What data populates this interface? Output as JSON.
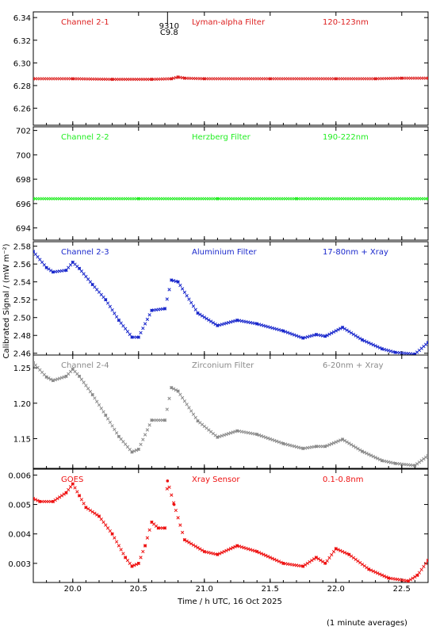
{
  "chart_data": {
    "type": "scatter",
    "ylabel": "Calibrated Signal / (mW m⁻²)",
    "xlabel": "Time / h UTC, 16 Oct 2025",
    "footnote": "(1 minute averages)",
    "x_range": [
      19.7,
      22.7
    ],
    "x_ticks": [
      20.0,
      20.5,
      21.0,
      21.5,
      22.0,
      22.5
    ],
    "x_tick_labels": [
      "20.0",
      "20.5",
      "21.0",
      "21.5",
      "22.0",
      "22.5"
    ],
    "annotation": {
      "lines": [
        "9310",
        "C9.8"
      ],
      "x": 20.72
    },
    "panels": [
      {
        "channel": "Channel 2-1",
        "filter": "Lyman-alpha Filter",
        "band": "120-123nm",
        "color": "#dd2020",
        "ylim": [
          6.245,
          6.345
        ],
        "yticks": [
          6.26,
          6.28,
          6.3,
          6.32,
          6.34
        ],
        "ytick_labels": [
          "6.26",
          "6.28",
          "6.30",
          "6.32",
          "6.34"
        ],
        "x": [
          19.7,
          20.0,
          20.3,
          20.6,
          20.75,
          20.8,
          20.85,
          21.0,
          21.5,
          22.0,
          22.3,
          22.5,
          22.7
        ],
        "values": [
          6.286,
          6.286,
          6.2855,
          6.2855,
          6.286,
          6.2875,
          6.2865,
          6.286,
          6.286,
          6.286,
          6.286,
          6.2865,
          6.2865
        ]
      },
      {
        "channel": "Channel 2-2",
        "filter": "Herzberg Filter",
        "band": "190-222nm",
        "color": "#22ee22",
        "ylim": [
          693.0,
          702.3
        ],
        "yticks": [
          694,
          696,
          698,
          700,
          702
        ],
        "ytick_labels": [
          "694",
          "696",
          "698",
          "700",
          "702"
        ],
        "x": [
          19.7,
          20.5,
          21.1,
          21.7,
          22.7
        ],
        "values": [
          696.4,
          696.4,
          696.4,
          696.4,
          696.4
        ]
      },
      {
        "channel": "Channel 2-3",
        "filter": "Aluminium Filter",
        "band": "17-80nm + Xray",
        "color": "#1a28cc",
        "ylim": [
          2.458,
          2.585
        ],
        "yticks": [
          2.46,
          2.48,
          2.5,
          2.52,
          2.54,
          2.56,
          2.58
        ],
        "ytick_labels": [
          "2.46",
          "2.48",
          "2.50",
          "2.52",
          "2.54",
          "2.56",
          "2.58"
        ],
        "x": [
          19.7,
          19.8,
          19.85,
          19.95,
          20.0,
          20.05,
          20.15,
          20.25,
          20.35,
          20.45,
          20.5,
          20.6,
          20.7,
          20.75,
          20.8,
          20.95,
          21.1,
          21.25,
          21.4,
          21.6,
          21.75,
          21.85,
          21.92,
          22.05,
          22.2,
          22.35,
          22.45,
          22.6,
          22.7
        ],
        "values": [
          2.574,
          2.556,
          2.551,
          2.553,
          2.562,
          2.555,
          2.537,
          2.52,
          2.497,
          2.478,
          2.478,
          2.508,
          2.51,
          2.542,
          2.54,
          2.505,
          2.491,
          2.497,
          2.493,
          2.485,
          2.477,
          2.481,
          2.479,
          2.489,
          2.475,
          2.465,
          2.461,
          2.459,
          2.472
        ]
      },
      {
        "channel": "Channel 2-4",
        "filter": "Zirconium Filter",
        "band": "6-20nm + Xray",
        "color": "#8a8a8a",
        "ylim": [
          1.108,
          1.268
        ],
        "yticks": [
          1.15,
          1.2,
          1.25
        ],
        "ytick_labels": [
          "1.15",
          "1.20",
          "1.25"
        ],
        "x": [
          19.7,
          19.8,
          19.85,
          19.95,
          20.0,
          20.05,
          20.15,
          20.25,
          20.35,
          20.45,
          20.5,
          20.6,
          20.7,
          20.75,
          20.8,
          20.95,
          21.1,
          21.25,
          21.4,
          21.6,
          21.75,
          21.85,
          21.92,
          22.05,
          22.2,
          22.35,
          22.45,
          22.6,
          22.7
        ],
        "values": [
          1.257,
          1.237,
          1.232,
          1.238,
          1.248,
          1.238,
          1.212,
          1.183,
          1.153,
          1.131,
          1.135,
          1.176,
          1.176,
          1.222,
          1.217,
          1.175,
          1.152,
          1.161,
          1.156,
          1.143,
          1.136,
          1.139,
          1.139,
          1.149,
          1.132,
          1.119,
          1.115,
          1.112,
          1.126
        ]
      },
      {
        "channel": "GOES",
        "filter": "Xray Sensor",
        "band": "0.1-0.8nm",
        "color": "#ee1111",
        "ylim": [
          0.00235,
          0.0062
        ],
        "yticks": [
          0.003,
          0.004,
          0.005,
          0.006
        ],
        "ytick_labels": [
          "0.003",
          "0.004",
          "0.005",
          "0.006"
        ],
        "x": [
          19.7,
          19.75,
          19.85,
          19.95,
          20.0,
          20.05,
          20.1,
          20.2,
          20.3,
          20.4,
          20.45,
          20.5,
          20.55,
          20.6,
          20.65,
          20.7,
          20.72,
          20.77,
          20.85,
          21.0,
          21.1,
          21.25,
          21.4,
          21.6,
          21.75,
          21.85,
          21.92,
          22.0,
          22.1,
          22.25,
          22.4,
          22.55,
          22.62,
          22.7
        ],
        "values": [
          0.0052,
          0.0051,
          0.0051,
          0.0054,
          0.0057,
          0.0053,
          0.0049,
          0.0046,
          0.004,
          0.0032,
          0.0029,
          0.003,
          0.0036,
          0.0044,
          0.0042,
          0.0042,
          0.0058,
          0.005,
          0.0038,
          0.0034,
          0.0033,
          0.0036,
          0.0034,
          0.003,
          0.0029,
          0.0032,
          0.003,
          0.0035,
          0.0033,
          0.0028,
          0.0025,
          0.0024,
          0.0026,
          0.0031
        ]
      }
    ]
  }
}
